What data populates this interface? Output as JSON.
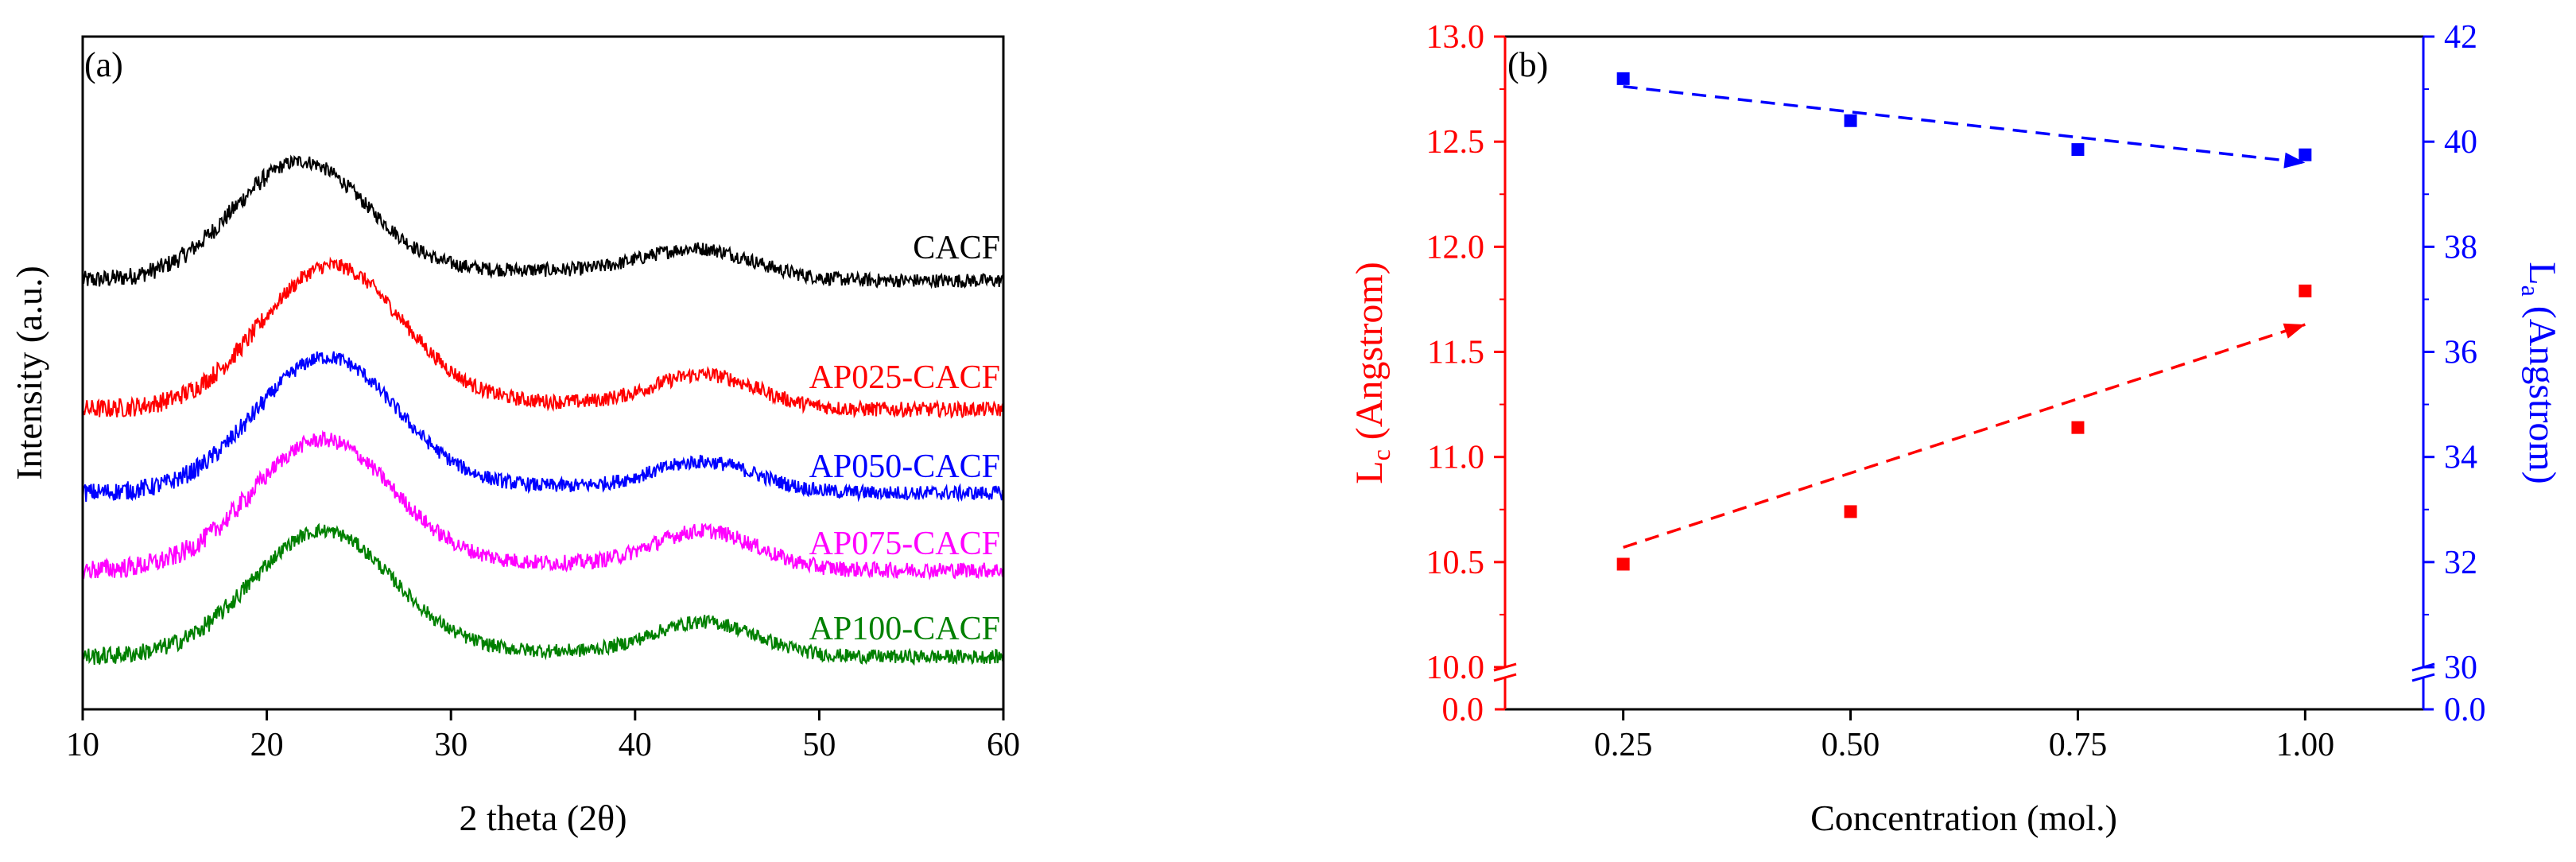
{
  "chart_data": [
    {
      "panel": "a",
      "panel_label": "(a)",
      "type": "line",
      "xlabel": "2 theta (2θ)",
      "ylabel": "Intensity (a.u.)",
      "xlim": [
        10,
        60
      ],
      "xticks": [
        "10",
        "20",
        "30",
        "40",
        "50",
        "60"
      ],
      "xtick_values": [
        10,
        20,
        30,
        40,
        50,
        60
      ],
      "y_tick_labels_shown": false,
      "series": [
        {
          "name": "CACF",
          "color": "#000000",
          "baseline": 0.78,
          "peak1": {
            "x": 21.8,
            "height": 0.92,
            "width": 3.6
          },
          "peak2": {
            "x": 43.5,
            "height": 0.22,
            "width": 3.0
          },
          "tail": 0.08,
          "noise": 0.11
        },
        {
          "name": "AP025-CACF",
          "color": "#ff0000",
          "baseline": 0.0,
          "peak1": {
            "x": 23.5,
            "height": 1.05,
            "width": 3.8
          },
          "peak2": {
            "x": 43.8,
            "height": 0.24,
            "width": 2.8
          },
          "tail": 0.05,
          "noise": 0.11
        },
        {
          "name": "AP050-CACF",
          "color": "#0000ff",
          "baseline": 0.0,
          "peak1": {
            "x": 23.2,
            "height": 1.02,
            "width": 3.8
          },
          "peak2": {
            "x": 43.8,
            "height": 0.22,
            "width": 2.8
          },
          "tail": 0.05,
          "noise": 0.11
        },
        {
          "name": "AP075-CACF",
          "color": "#ff00ff",
          "baseline": 0.0,
          "peak1": {
            "x": 23.0,
            "height": 0.98,
            "width": 3.8
          },
          "peak2": {
            "x": 43.8,
            "height": 0.28,
            "width": 2.8
          },
          "tail": 0.05,
          "noise": 0.12
        },
        {
          "name": "AP100-CACF",
          "color": "#008000",
          "baseline": 0.0,
          "peak1": {
            "x": 23.0,
            "height": 0.98,
            "width": 3.8
          },
          "peak2": {
            "x": 43.8,
            "height": 0.26,
            "width": 2.8
          },
          "tail": 0.04,
          "noise": 0.11
        }
      ]
    },
    {
      "panel": "b",
      "panel_label": "(b)",
      "type": "scatter",
      "xlabel": "Concentration (mol.)",
      "xlim": [
        0.12,
        1.13
      ],
      "xticks": [
        "0.25",
        "0.50",
        "0.75",
        "1.00"
      ],
      "xtick_values": [
        0.25,
        0.5,
        0.75,
        1.0
      ],
      "left_axis": {
        "label_main": "L",
        "label_sub": "c",
        "label_rest": " (Angstrom)",
        "color": "#ff0000",
        "range": [
          10.0,
          13.0
        ],
        "break_value": "0.0",
        "ticks": [
          "10.0",
          "10.5",
          "11.0",
          "11.5",
          "12.0",
          "12.5",
          "13.0"
        ],
        "tick_values": [
          10.0,
          10.5,
          11.0,
          11.5,
          12.0,
          12.5,
          13.0
        ]
      },
      "right_axis": {
        "label_main": "L",
        "label_sub": "a",
        "label_rest": " (Angstrom)",
        "color": "#0000ff",
        "range": [
          30,
          42
        ],
        "break_value": "0.0",
        "ticks": [
          "30",
          "32",
          "34",
          "36",
          "38",
          "40",
          "42"
        ],
        "tick_values": [
          30,
          32,
          34,
          36,
          38,
          40,
          42
        ]
      },
      "series": [
        {
          "name": "Lc",
          "axis": "left",
          "color": "#ff0000",
          "x": [
            0.25,
            0.5,
            0.75,
            1.0
          ],
          "y": [
            10.49,
            10.74,
            11.14,
            11.79
          ],
          "trend": {
            "from": [
              0.25,
              10.57
            ],
            "to": [
              1.0,
              11.63
            ]
          }
        },
        {
          "name": "La",
          "axis": "right",
          "color": "#0000ff",
          "x": [
            0.25,
            0.5,
            0.75,
            1.0
          ],
          "y": [
            41.2,
            40.4,
            39.85,
            39.75
          ],
          "trend": {
            "from": [
              0.25,
              41.05
            ],
            "to": [
              1.0,
              39.6
            ]
          }
        }
      ]
    }
  ]
}
